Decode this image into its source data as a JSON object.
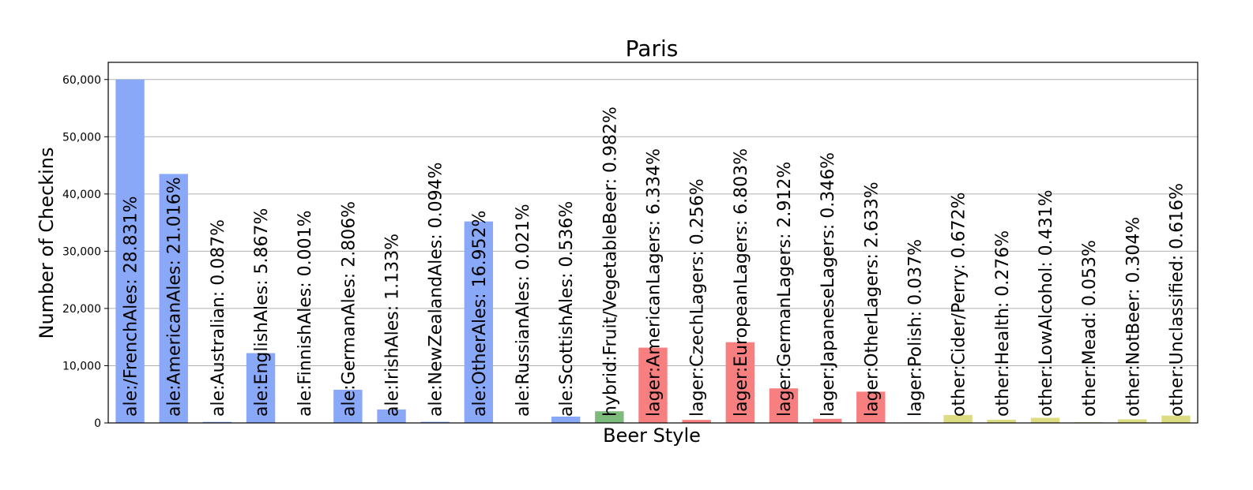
{
  "chart_data": {
    "type": "bar",
    "title": "Paris",
    "xlabel": "Beer Style",
    "ylabel": "Number of Checkins",
    "ylim": [
      0,
      63000
    ],
    "yticks": [
      0,
      10000,
      20000,
      30000,
      40000,
      50000,
      60000
    ],
    "ytick_labels": [
      "0",
      "10,000",
      "20,000",
      "30,000",
      "40,000",
      "50,000",
      "60,000"
    ],
    "grid": "horizontal",
    "categories": [
      "ale:/FrenchAles",
      "ale:AmericanAles",
      "ale:Australian",
      "ale:EnglishAles",
      "ale:FinnishAles",
      "ale:GermanAles",
      "ale:IrishAles",
      "ale:NewZealandAles",
      "ale:OtherAles",
      "ale:RussianAles",
      "ale:ScottishAles",
      "hybrid:Fruit/VegetableBeer",
      "lager:AmericanLagers",
      "lager:CzechLagers",
      "lager:EuropeanLagers",
      "lager:GermanLagers",
      "lager:JapaneseLagers",
      "lager:OtherLagers",
      "lager:Polish",
      "other:Cider/Perry",
      "other:Health",
      "other:LowAlcohol",
      "other:Mead",
      "other:NotBeer",
      "other:Unclassified"
    ],
    "values": [
      60000,
      43500,
      180,
      12200,
      2,
      5800,
      2350,
      195,
      35200,
      45,
      1110,
      2040,
      13150,
      530,
      14100,
      6040,
      720,
      5460,
      80,
      1390,
      570,
      890,
      110,
      630,
      1280
    ],
    "bar_labels": [
      "ale:/FrenchAles: 28.831%",
      "ale:AmericanAles: 21.016%",
      "ale:Australian: 0.087%",
      "ale:EnglishAles: 5.867%",
      "ale:FinnishAles: 0.001%",
      "ale:GermanAles: 2.806%",
      "ale:IrishAles: 1.133%",
      "ale:NewZealandAles: 0.094%",
      "ale:OtherAles: 16.952%",
      "ale:RussianAles: 0.021%",
      "ale:ScottishAles: 0.536%",
      "hybrid:Fruit/VegetableBeer: 0.982%",
      "lager:AmericanLagers: 6.334%",
      "lager:CzechLagers: 0.256%",
      "lager:EuropeanLagers: 6.803%",
      "lager:GermanLagers: 2.912%",
      "lager:JapaneseLagers: 0.346%",
      "lager:OtherLagers: 2.633%",
      "lager:Polish: 0.037%",
      "other:Cider/Perry: 0.672%",
      "other:Health: 0.276%",
      "other:LowAlcohol: 0.431%",
      "other:Mead: 0.053%",
      "other:NotBeer: 0.304%",
      "other:Unclassified: 0.616%"
    ],
    "groups": [
      "ale",
      "ale",
      "ale",
      "ale",
      "ale",
      "ale",
      "ale",
      "ale",
      "ale",
      "ale",
      "ale",
      "hybrid",
      "lager",
      "lager",
      "lager",
      "lager",
      "lager",
      "lager",
      "lager",
      "other",
      "other",
      "other",
      "other",
      "other",
      "other"
    ],
    "colors": {
      "ale": "#8aa8f8",
      "hybrid": "#7dbb7d",
      "lager": "#f87f7f",
      "other": "#dcdc82"
    }
  }
}
